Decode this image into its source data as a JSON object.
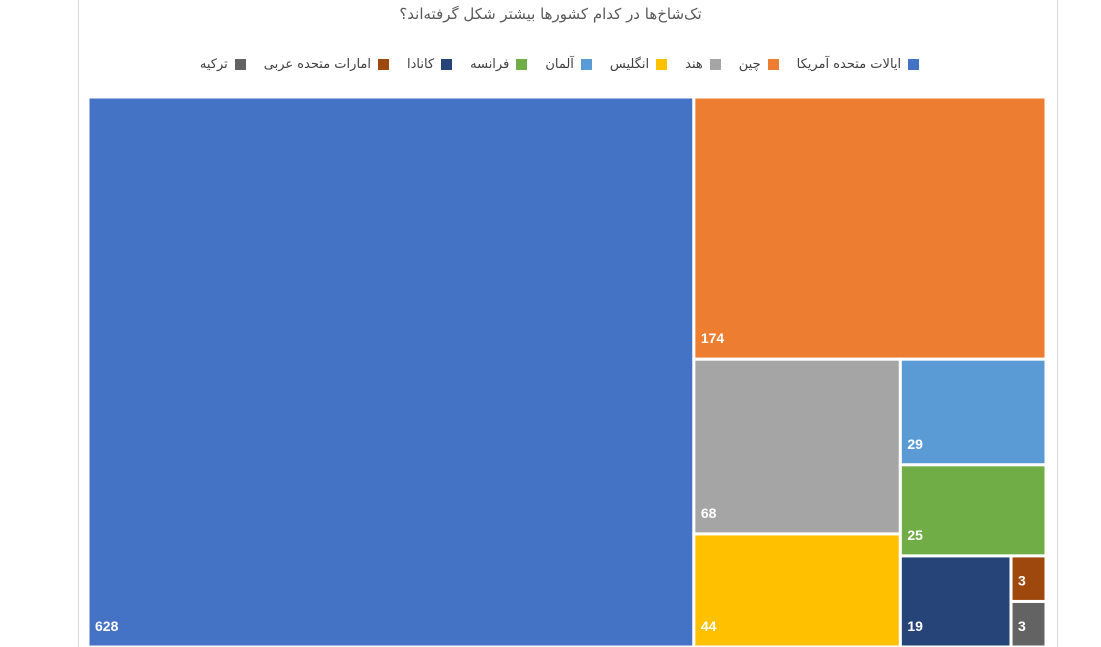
{
  "chart_data": {
    "type": "treemap",
    "title": "تک‌شاخ‌ها در کدام کشورها بیشتر شکل گرفته‌اند؟",
    "legend_position": "top",
    "series": [
      {
        "name": "ایالات متحده آمریکا",
        "value": 628,
        "color": "#4472C4"
      },
      {
        "name": "چین",
        "value": 174,
        "color": "#ED7D31"
      },
      {
        "name": "هند",
        "value": 68,
        "color": "#A5A5A5"
      },
      {
        "name": "انگلیس",
        "value": 44,
        "color": "#FFC000"
      },
      {
        "name": "آلمان",
        "value": 29,
        "color": "#5B9BD5"
      },
      {
        "name": "فرانسه",
        "value": 25,
        "color": "#70AD47"
      },
      {
        "name": "کانادا",
        "value": 19,
        "color": "#264478"
      },
      {
        "name": "امارات متحده عربی",
        "value": 3,
        "color": "#9E480E"
      },
      {
        "name": "ترکیه",
        "value": 3,
        "color": "#636363"
      }
    ]
  }
}
